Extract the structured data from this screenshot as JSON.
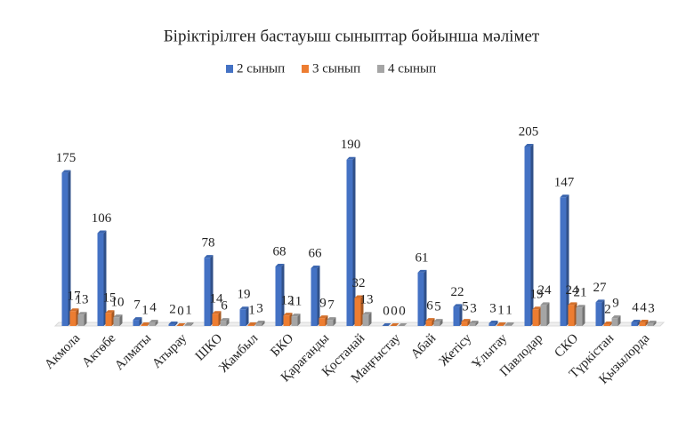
{
  "chart_data": {
    "type": "bar",
    "title": "Біріктірілген бастауыш сыныптар бойынша мәлімет",
    "categories": [
      "Акмола",
      "Актөбе",
      "Алматы",
      "Атырау",
      "ШКО",
      "Жамбыл",
      "БКО",
      "Қарағанды",
      "Қостанай",
      "Маңғыстау",
      "Абай",
      "Жетісу",
      "Ұлытау",
      "Павлодар",
      "СКО",
      "Түркістан",
      "Қызылорда"
    ],
    "series": [
      {
        "name": "2 сынып",
        "color": "#4472c4",
        "values": [
          175,
          106,
          7,
          2,
          78,
          19,
          68,
          66,
          190,
          0,
          61,
          22,
          3,
          205,
          147,
          27,
          4
        ]
      },
      {
        "name": "3 сынып",
        "color": "#ed7d31",
        "values": [
          17,
          15,
          1,
          0,
          14,
          1,
          12,
          9,
          32,
          0,
          6,
          5,
          1,
          19,
          24,
          2,
          4
        ]
      },
      {
        "name": "4 сынып",
        "color": "#a5a5a5",
        "values": [
          13,
          10,
          4,
          1,
          6,
          3,
          11,
          7,
          13,
          0,
          5,
          3,
          1,
          24,
          21,
          9,
          3
        ]
      }
    ],
    "legend": "top"
  }
}
